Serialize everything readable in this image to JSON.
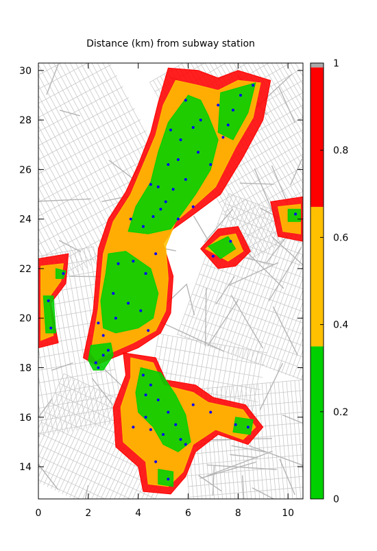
{
  "chart_data": {
    "type": "heatmap",
    "title": "Distance (km) from subway station",
    "xlabel": "",
    "ylabel": "",
    "xlim": [
      0,
      10.6
    ],
    "ylim": [
      12.7,
      30.3
    ],
    "x_ticks": [
      0,
      2,
      4,
      6,
      8,
      10
    ],
    "y_ticks": [
      14,
      16,
      18,
      20,
      22,
      24,
      26,
      28,
      30
    ],
    "grid": false,
    "colorbar": {
      "range": [
        0,
        1
      ],
      "ticks": [
        "0",
        "0.2",
        "0.4",
        "0.6",
        "0.8",
        "1"
      ],
      "bands": [
        {
          "from": 0.0,
          "to": 0.35,
          "color": "#00d000",
          "label": "green"
        },
        {
          "from": 0.35,
          "to": 0.67,
          "color": "#ffc000",
          "label": "yellow"
        },
        {
          "from": 0.67,
          "to": 0.99,
          "color": "#ff0000",
          "label": "red"
        },
        {
          "from": 0.99,
          "to": 1.0,
          "color": "#aaaaaa",
          "label": "gray"
        }
      ]
    },
    "background_color": "#cccccc",
    "station_color": "#0000ff",
    "stations": [
      [
        1.0,
        21.8
      ],
      [
        0.4,
        20.7
      ],
      [
        0.5,
        19.6
      ],
      [
        2.6,
        19.3
      ],
      [
        2.4,
        19.8
      ],
      [
        2.6,
        18.5
      ],
      [
        2.8,
        18.7
      ],
      [
        2.3,
        18.2
      ],
      [
        2.4,
        18.0
      ],
      [
        3.1,
        20.0
      ],
      [
        3.0,
        21.0
      ],
      [
        3.6,
        20.6
      ],
      [
        4.1,
        20.3
      ],
      [
        4.4,
        19.5
      ],
      [
        3.2,
        22.2
      ],
      [
        4.3,
        21.8
      ],
      [
        4.7,
        22.6
      ],
      [
        3.8,
        22.3
      ],
      [
        3.7,
        24.0
      ],
      [
        4.2,
        23.7
      ],
      [
        4.6,
        24.1
      ],
      [
        4.9,
        24.4
      ],
      [
        5.6,
        24.0
      ],
      [
        5.1,
        24.7
      ],
      [
        5.4,
        25.2
      ],
      [
        5.9,
        25.6
      ],
      [
        6.2,
        24.5
      ],
      [
        4.8,
        25.3
      ],
      [
        4.5,
        25.4
      ],
      [
        5.2,
        26.2
      ],
      [
        5.6,
        26.4
      ],
      [
        6.4,
        26.7
      ],
      [
        6.9,
        26.2
      ],
      [
        7.4,
        27.3
      ],
      [
        5.7,
        27.2
      ],
      [
        6.2,
        27.7
      ],
      [
        6.5,
        28.0
      ],
      [
        5.3,
        27.6
      ],
      [
        5.9,
        28.8
      ],
      [
        7.2,
        28.6
      ],
      [
        7.8,
        28.4
      ],
      [
        8.1,
        29.0
      ],
      [
        8.6,
        29.4
      ],
      [
        7.6,
        27.8
      ],
      [
        7.0,
        22.5
      ],
      [
        7.7,
        23.1
      ],
      [
        10.3,
        24.2
      ],
      [
        4.2,
        17.7
      ],
      [
        4.5,
        17.3
      ],
      [
        4.3,
        16.9
      ],
      [
        4.8,
        16.7
      ],
      [
        5.2,
        16.2
      ],
      [
        5.0,
        15.3
      ],
      [
        5.5,
        15.7
      ],
      [
        5.7,
        15.1
      ],
      [
        5.9,
        14.9
      ],
      [
        6.2,
        16.5
      ],
      [
        6.9,
        16.2
      ],
      [
        4.5,
        15.5
      ],
      [
        3.8,
        15.6
      ],
      [
        4.3,
        16.0
      ],
      [
        8.4,
        15.6
      ],
      [
        7.9,
        15.7
      ],
      [
        5.2,
        13.5
      ],
      [
        4.7,
        14.2
      ]
    ],
    "coverage": [
      {
        "band": "red",
        "polygon": [
          [
            5.2,
            30.1
          ],
          [
            6.4,
            30.0
          ],
          [
            7.2,
            29.7
          ],
          [
            8.0,
            30.0
          ],
          [
            9.3,
            29.6
          ],
          [
            9.0,
            28.0
          ],
          [
            8.2,
            26.5
          ],
          [
            7.3,
            25.0
          ],
          [
            6.1,
            24.1
          ],
          [
            5.4,
            23.6
          ],
          [
            5.0,
            23.0
          ],
          [
            5.4,
            21.7
          ],
          [
            5.3,
            20.2
          ],
          [
            4.9,
            19.4
          ],
          [
            4.0,
            18.8
          ],
          [
            3.0,
            18.4
          ],
          [
            2.3,
            18.1
          ],
          [
            1.8,
            18.4
          ],
          [
            2.2,
            20.3
          ],
          [
            2.4,
            22.8
          ],
          [
            2.8,
            24.0
          ],
          [
            3.5,
            25.1
          ],
          [
            4.0,
            26.2
          ],
          [
            4.5,
            27.5
          ],
          [
            4.8,
            28.7
          ]
        ]
      },
      {
        "band": "red",
        "polygon": [
          [
            0.0,
            22.4
          ],
          [
            1.2,
            22.6
          ],
          [
            1.1,
            21.4
          ],
          [
            0.5,
            20.6
          ],
          [
            0.8,
            19.0
          ],
          [
            0.0,
            18.8
          ]
        ]
      },
      {
        "band": "red",
        "polygon": [
          [
            6.5,
            22.8
          ],
          [
            7.2,
            23.6
          ],
          [
            8.0,
            23.7
          ],
          [
            8.5,
            22.7
          ],
          [
            7.9,
            22.1
          ],
          [
            7.2,
            22.0
          ]
        ]
      },
      {
        "band": "red",
        "polygon": [
          [
            9.3,
            24.7
          ],
          [
            10.6,
            24.9
          ],
          [
            10.6,
            23.1
          ],
          [
            9.6,
            23.3
          ]
        ]
      },
      {
        "band": "red",
        "polygon": [
          [
            3.4,
            18.6
          ],
          [
            4.7,
            18.4
          ],
          [
            5.1,
            17.5
          ],
          [
            6.3,
            17.3
          ],
          [
            7.0,
            16.8
          ],
          [
            8.3,
            16.5
          ],
          [
            9.0,
            15.6
          ],
          [
            8.4,
            14.9
          ],
          [
            7.2,
            15.3
          ],
          [
            6.3,
            14.6
          ],
          [
            5.9,
            13.6
          ],
          [
            5.3,
            12.9
          ],
          [
            4.2,
            13.0
          ],
          [
            4.0,
            14.0
          ],
          [
            3.1,
            14.8
          ],
          [
            3.0,
            16.4
          ],
          [
            3.5,
            17.7
          ]
        ]
      },
      {
        "band": "yellow",
        "polygon": [
          [
            5.5,
            29.6
          ],
          [
            6.4,
            29.4
          ],
          [
            7.2,
            29.2
          ],
          [
            8.0,
            29.6
          ],
          [
            8.9,
            29.5
          ],
          [
            8.6,
            28.1
          ],
          [
            7.9,
            26.9
          ],
          [
            7.1,
            25.3
          ],
          [
            6.1,
            24.4
          ],
          [
            5.5,
            23.9
          ],
          [
            5.1,
            22.9
          ],
          [
            5.2,
            21.6
          ],
          [
            5.1,
            20.3
          ],
          [
            4.7,
            19.5
          ],
          [
            3.8,
            19.0
          ],
          [
            2.9,
            18.6
          ],
          [
            2.3,
            18.3
          ],
          [
            2.1,
            18.6
          ],
          [
            2.4,
            20.4
          ],
          [
            2.6,
            22.6
          ],
          [
            3.0,
            23.9
          ],
          [
            3.7,
            25.0
          ],
          [
            4.2,
            26.2
          ],
          [
            4.7,
            27.4
          ],
          [
            5.0,
            28.6
          ]
        ]
      },
      {
        "band": "yellow",
        "polygon": [
          [
            0.1,
            22.1
          ],
          [
            1.0,
            22.2
          ],
          [
            0.9,
            21.5
          ],
          [
            0.4,
            20.8
          ],
          [
            0.6,
            19.3
          ],
          [
            0.1,
            19.1
          ]
        ]
      },
      {
        "band": "yellow",
        "polygon": [
          [
            6.7,
            22.8
          ],
          [
            7.3,
            23.3
          ],
          [
            7.9,
            23.4
          ],
          [
            8.2,
            22.7
          ],
          [
            7.6,
            22.3
          ]
        ]
      },
      {
        "band": "yellow",
        "polygon": [
          [
            9.6,
            24.5
          ],
          [
            10.5,
            24.6
          ],
          [
            10.5,
            23.4
          ],
          [
            9.8,
            23.5
          ]
        ]
      },
      {
        "band": "yellow",
        "polygon": [
          [
            3.7,
            18.4
          ],
          [
            4.6,
            18.2
          ],
          [
            5.0,
            17.3
          ],
          [
            6.2,
            17.0
          ],
          [
            6.8,
            16.6
          ],
          [
            8.2,
            16.3
          ],
          [
            8.7,
            15.6
          ],
          [
            8.2,
            15.1
          ],
          [
            7.1,
            15.5
          ],
          [
            6.2,
            14.9
          ],
          [
            5.8,
            13.8
          ],
          [
            5.2,
            13.2
          ],
          [
            4.4,
            13.3
          ],
          [
            4.3,
            14.2
          ],
          [
            3.4,
            15.0
          ],
          [
            3.3,
            16.4
          ],
          [
            3.7,
            17.6
          ]
        ]
      },
      {
        "band": "green",
        "polygon": [
          [
            6.0,
            29.0
          ],
          [
            6.5,
            28.8
          ],
          [
            6.8,
            28.2
          ],
          [
            7.2,
            27.2
          ],
          [
            6.9,
            26.0
          ],
          [
            6.3,
            25.0
          ],
          [
            5.8,
            24.3
          ],
          [
            5.3,
            23.6
          ],
          [
            4.4,
            23.4
          ],
          [
            3.6,
            23.5
          ],
          [
            3.9,
            24.5
          ],
          [
            4.5,
            25.5
          ],
          [
            4.8,
            26.7
          ],
          [
            5.2,
            27.9
          ]
        ]
      },
      {
        "band": "green",
        "polygon": [
          [
            7.3,
            29.1
          ],
          [
            8.0,
            29.3
          ],
          [
            8.7,
            29.5
          ],
          [
            8.4,
            28.3
          ],
          [
            7.8,
            27.2
          ],
          [
            7.2,
            27.5
          ]
        ]
      },
      {
        "band": "green",
        "polygon": [
          [
            2.8,
            22.6
          ],
          [
            3.5,
            22.7
          ],
          [
            4.5,
            22.0
          ],
          [
            4.8,
            21.0
          ],
          [
            4.6,
            20.0
          ],
          [
            4.0,
            19.6
          ],
          [
            3.1,
            19.4
          ],
          [
            2.6,
            19.6
          ],
          [
            2.5,
            20.7
          ],
          [
            2.7,
            21.8
          ]
        ]
      },
      {
        "band": "green",
        "polygon": [
          [
            2.1,
            18.9
          ],
          [
            2.9,
            19.0
          ],
          [
            3.0,
            18.5
          ],
          [
            2.6,
            17.9
          ],
          [
            2.2,
            17.9
          ],
          [
            2.0,
            18.3
          ]
        ]
      },
      {
        "band": "green",
        "polygon": [
          [
            4.1,
            18.0
          ],
          [
            4.9,
            17.8
          ],
          [
            5.5,
            16.9
          ],
          [
            5.9,
            16.1
          ],
          [
            6.1,
            15.0
          ],
          [
            5.6,
            14.6
          ],
          [
            5.0,
            14.9
          ],
          [
            4.6,
            15.6
          ],
          [
            4.0,
            16.2
          ],
          [
            3.9,
            17.0
          ]
        ]
      },
      {
        "band": "green",
        "polygon": [
          [
            0.7,
            22.0
          ],
          [
            1.1,
            21.9
          ],
          [
            1.0,
            21.6
          ],
          [
            0.7,
            21.6
          ]
        ]
      },
      {
        "band": "green",
        "polygon": [
          [
            0.2,
            20.9
          ],
          [
            0.6,
            20.9
          ],
          [
            0.7,
            19.4
          ],
          [
            0.3,
            19.4
          ]
        ]
      },
      {
        "band": "green",
        "polygon": [
          [
            7.9,
            16.0
          ],
          [
            8.6,
            15.9
          ],
          [
            8.5,
            15.3
          ],
          [
            7.8,
            15.4
          ]
        ]
      },
      {
        "band": "green",
        "polygon": [
          [
            4.8,
            13.9
          ],
          [
            5.4,
            13.8
          ],
          [
            5.4,
            13.2
          ],
          [
            4.8,
            13.3
          ]
        ]
      },
      {
        "band": "green",
        "polygon": [
          [
            6.8,
            22.9
          ],
          [
            7.6,
            23.3
          ],
          [
            7.9,
            22.8
          ],
          [
            7.3,
            22.4
          ]
        ]
      },
      {
        "band": "green",
        "polygon": [
          [
            10.0,
            24.4
          ],
          [
            10.5,
            24.4
          ],
          [
            10.5,
            23.9
          ],
          [
            10.0,
            23.9
          ]
        ]
      }
    ]
  }
}
